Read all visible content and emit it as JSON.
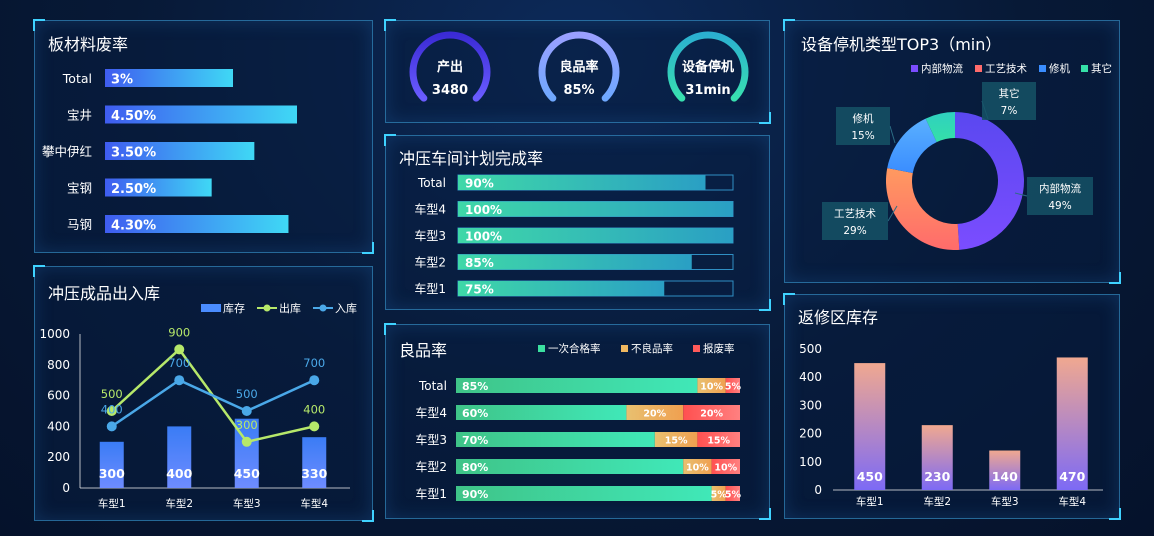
{
  "scrap_rate": {
    "title": "板材料废率",
    "chart_data": {
      "type": "bar",
      "orientation": "horizontal",
      "categories": [
        "Total",
        "宝井",
        "攀中伊红",
        "宝钢",
        "马钢"
      ],
      "values": [
        3,
        4.5,
        3.5,
        2.5,
        4.3
      ],
      "value_labels": [
        "3%",
        "4.50%",
        "3.50%",
        "2.50%",
        "4.30%"
      ],
      "unit": "%"
    }
  },
  "kpis": [
    {
      "name": "产出",
      "value": "3480",
      "color_from": "#6a5cff",
      "color_to": "#3b2bd6"
    },
    {
      "name": "良品率",
      "value": "85%",
      "color_from": "#6fa8ff",
      "color_to": "#9aa0ff"
    },
    {
      "name": "设备停机",
      "value": "31min",
      "color_from": "#38e0b0",
      "color_to": "#2bb0d0"
    }
  ],
  "plan_completion": {
    "title": "冲压车间计划完成率",
    "chart_data": {
      "type": "bar",
      "orientation": "horizontal",
      "categories": [
        "Total",
        "车型4",
        "车型3",
        "车型2",
        "车型1"
      ],
      "values": [
        90,
        100,
        100,
        85,
        75
      ],
      "value_labels": [
        "90%",
        "100%",
        "100%",
        "85%",
        "75%"
      ],
      "xlim": [
        0,
        100
      ]
    }
  },
  "downtime": {
    "title": "设备停机类型TOP3（min）",
    "chart_data": {
      "type": "pie",
      "donut": true,
      "legend_position": "top-right",
      "slices": [
        {
          "name": "内部物流",
          "value": 49,
          "label": "49%",
          "color": "#7b4dff"
        },
        {
          "name": "工艺技术",
          "value": 29,
          "label": "29%",
          "color": "#ff6b6b"
        },
        {
          "name": "修机",
          "value": 15,
          "label": "15%",
          "color": "#3a8dff"
        },
        {
          "name": "其它",
          "value": 7,
          "label": "7%",
          "color": "#35e0a8"
        }
      ]
    }
  },
  "inout": {
    "title": "冲压成品出入库",
    "chart_data": {
      "type": "bar",
      "legend_position": "top-right",
      "categories": [
        "车型1",
        "车型2",
        "车型3",
        "车型4"
      ],
      "ylim": [
        0,
        1000
      ],
      "yticks": [
        0,
        200,
        400,
        600,
        800,
        1000
      ],
      "series": [
        {
          "name": "库存",
          "type": "bar",
          "values": [
            300,
            400,
            450,
            330
          ],
          "color": "#4a8cff"
        },
        {
          "name": "出库",
          "type": "line",
          "values": [
            500,
            900,
            300,
            400
          ],
          "color": "#b6e86a"
        },
        {
          "name": "入库",
          "type": "line",
          "values": [
            400,
            700,
            500,
            700
          ],
          "color": "#4aa8e8"
        }
      ]
    }
  },
  "quality": {
    "title": "良品率",
    "chart_data": {
      "type": "bar",
      "orientation": "horizontal",
      "stacked": true,
      "legend_position": "top-right",
      "categories": [
        "Total",
        "车型4",
        "车型3",
        "车型2",
        "车型1"
      ],
      "series": [
        {
          "name": "一次合格率",
          "values": [
            85,
            60,
            70,
            80,
            90
          ],
          "color": "#3be0a0"
        },
        {
          "name": "不良品率",
          "values": [
            10,
            20,
            15,
            10,
            5
          ],
          "color": "#f0b860"
        },
        {
          "name": "报废率",
          "values": [
            5,
            20,
            15,
            10,
            5
          ],
          "color": "#ff5a5a"
        }
      ]
    }
  },
  "repair": {
    "title": "返修区库存",
    "chart_data": {
      "type": "bar",
      "categories": [
        "车型1",
        "车型2",
        "车型3",
        "车型4"
      ],
      "values": [
        450,
        230,
        140,
        470
      ],
      "ylim": [
        0,
        500
      ],
      "yticks": [
        0,
        100,
        200,
        300,
        400,
        500
      ]
    }
  }
}
